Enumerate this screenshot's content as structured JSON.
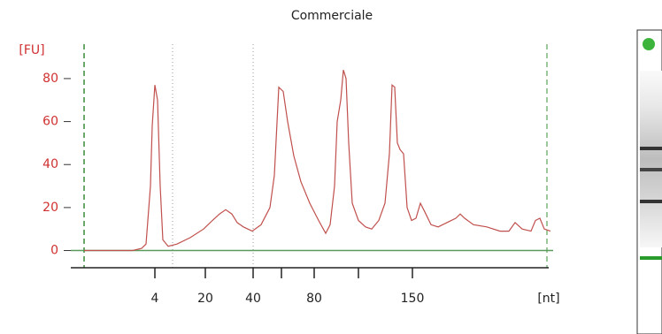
{
  "chart_data": {
    "type": "line",
    "title": "Commerciale",
    "y_label": "[FU]",
    "x_label": "[nt]",
    "xlim": [
      0,
      545
    ],
    "ylim": [
      -8,
      96
    ],
    "yticks": [
      0,
      20,
      40,
      60,
      80
    ],
    "xticks": [
      {
        "value": 95,
        "label": "4"
      },
      {
        "value": 152,
        "label": "20"
      },
      {
        "value": 206,
        "label": "40"
      },
      {
        "value": 275,
        "label": "80"
      },
      {
        "value": 386,
        "label": "150"
      }
    ],
    "minor_xticks": [
      238,
      325
    ],
    "vlines": [
      {
        "x": 15,
        "color": "#6aa86a",
        "style": "dashed"
      },
      {
        "x": 115,
        "color": "#999999",
        "style": "dotted"
      },
      {
        "x": 206,
        "color": "#999999",
        "style": "dotted"
      },
      {
        "x": 538,
        "color": "#9cc89c",
        "style": "dashed"
      }
    ],
    "baseline_color": "#5a9a5a",
    "tick_label_color": "#d03030",
    "series": [
      {
        "name": "Commerciale",
        "color": "#c0504d",
        "x": [
          15,
          70,
          80,
          85,
          90,
          92,
          95,
          98,
          101,
          104,
          110,
          120,
          135,
          150,
          160,
          168,
          175,
          182,
          188,
          195,
          205,
          215,
          225,
          230,
          235,
          240,
          245,
          252,
          260,
          270,
          280,
          288,
          293,
          298,
          301,
          305,
          308,
          311,
          314,
          318,
          325,
          333,
          340,
          348,
          355,
          360,
          363,
          366,
          369,
          372,
          376,
          380,
          385,
          390,
          395,
          400,
          407,
          415,
          425,
          435,
          440,
          445,
          455,
          470,
          485,
          495,
          502,
          510,
          520,
          525,
          530,
          535,
          542
        ],
        "values": [
          0,
          0,
          1,
          3,
          30,
          58,
          77,
          70,
          30,
          5,
          2,
          3,
          6,
          10,
          14,
          17,
          19,
          17,
          13,
          11,
          9,
          12,
          20,
          35,
          76,
          74,
          60,
          44,
          32,
          22,
          14,
          8,
          12,
          30,
          60,
          70,
          84,
          80,
          50,
          22,
          14,
          11,
          10,
          14,
          22,
          45,
          77,
          76,
          50,
          47,
          45,
          20,
          14,
          15,
          22,
          18,
          12,
          11,
          13,
          15,
          17,
          15,
          12,
          11,
          9,
          9,
          13,
          10,
          9,
          14,
          15,
          10,
          9
        ]
      }
    ]
  }
}
